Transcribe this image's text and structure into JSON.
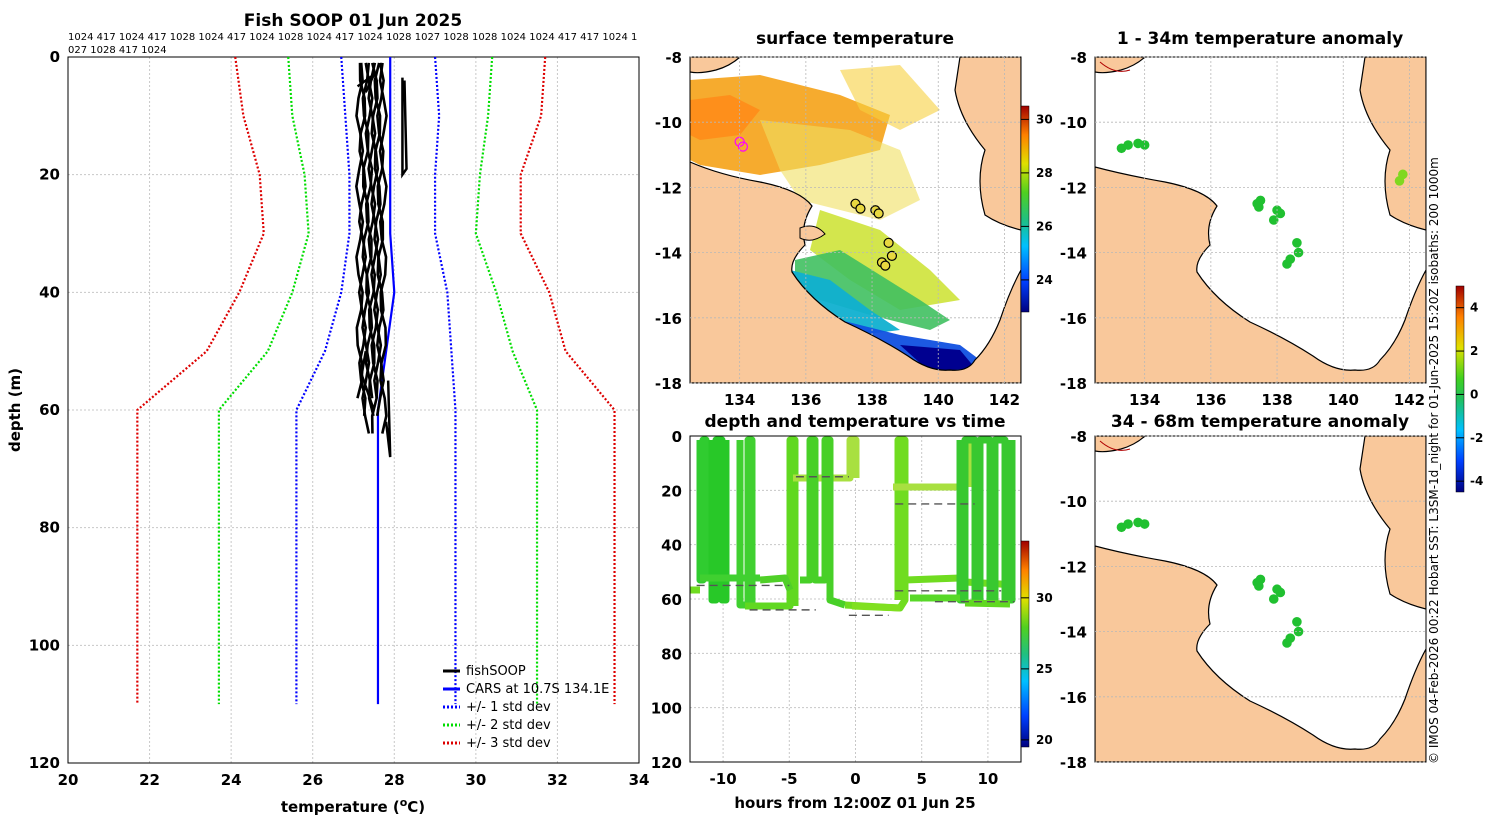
{
  "chart_data": [
    {
      "id": "profile",
      "type": "line",
      "title": "Fish SOOP 01 Jun 2025",
      "header_ids_line1": "1024 417 1024 417 1028 1024 417 1024 1028 1024 417 1024 1028 1027 1028 1028 1024 1024 417 417 1024 1",
      "header_ids_line2": "027 1028 417 1024",
      "xlabel": "temperature (",
      "xlabel_unit_sup": "o",
      "xlabel_unit": "C)",
      "ylabel": "depth (m)",
      "xlim": [
        20,
        34
      ],
      "ylim": [
        0,
        120
      ],
      "xticks": [
        "20",
        "22",
        "24",
        "26",
        "28",
        "30",
        "32",
        "34"
      ],
      "yticks": [
        "0",
        "20",
        "40",
        "60",
        "80",
        "100",
        "120"
      ],
      "grid": true,
      "legend_placement": "bottom-right",
      "legend": [
        "fishSOOP",
        "CARS at 10.7S 134.1E",
        "+/- 1 std dev",
        "+/- 2 std dev",
        "+/- 3 std dev"
      ],
      "series": [
        {
          "name": "CARS at 10.7S 134.1E",
          "color": "#0000ff",
          "style": "solid",
          "points": [
            [
              27.9,
              0
            ],
            [
              27.9,
              10
            ],
            [
              27.9,
              20
            ],
            [
              27.9,
              30
            ],
            [
              28.0,
              40
            ],
            [
              27.8,
              50
            ],
            [
              27.6,
              60
            ],
            [
              27.6,
              80
            ],
            [
              27.6,
              110
            ]
          ]
        },
        {
          "name": "+/- 1 std dev low",
          "color": "#0000ff",
          "style": "dotted",
          "points": [
            [
              26.7,
              0
            ],
            [
              26.8,
              10
            ],
            [
              26.9,
              20
            ],
            [
              26.9,
              30
            ],
            [
              26.7,
              40
            ],
            [
              26.3,
              50
            ],
            [
              25.6,
              60
            ],
            [
              25.6,
              80
            ],
            [
              25.6,
              110
            ]
          ]
        },
        {
          "name": "+/- 1 std dev high",
          "color": "#0000ff",
          "style": "dotted",
          "points": [
            [
              29.0,
              0
            ],
            [
              29.1,
              10
            ],
            [
              29.0,
              20
            ],
            [
              29.0,
              30
            ],
            [
              29.3,
              40
            ],
            [
              29.4,
              50
            ],
            [
              29.5,
              60
            ],
            [
              29.5,
              80
            ],
            [
              29.5,
              110
            ]
          ]
        },
        {
          "name": "+/- 2 std dev low",
          "color": "#00dd00",
          "style": "dotted",
          "points": [
            [
              25.4,
              0
            ],
            [
              25.5,
              10
            ],
            [
              25.8,
              20
            ],
            [
              25.9,
              30
            ],
            [
              25.5,
              40
            ],
            [
              24.9,
              50
            ],
            [
              23.7,
              60
            ],
            [
              23.7,
              80
            ],
            [
              23.7,
              110
            ]
          ]
        },
        {
          "name": "+/- 2 std dev high",
          "color": "#00dd00",
          "style": "dotted",
          "points": [
            [
              30.4,
              0
            ],
            [
              30.3,
              10
            ],
            [
              30.1,
              20
            ],
            [
              30.0,
              30
            ],
            [
              30.5,
              40
            ],
            [
              30.9,
              50
            ],
            [
              31.5,
              60
            ],
            [
              31.5,
              80
            ],
            [
              31.5,
              110
            ]
          ]
        },
        {
          "name": "+/- 3 std dev low",
          "color": "#dd0000",
          "style": "dotted",
          "points": [
            [
              24.1,
              0
            ],
            [
              24.3,
              10
            ],
            [
              24.7,
              20
            ],
            [
              24.8,
              30
            ],
            [
              24.2,
              40
            ],
            [
              23.4,
              50
            ],
            [
              21.7,
              60
            ],
            [
              21.7,
              80
            ],
            [
              21.7,
              110
            ]
          ]
        },
        {
          "name": "+/- 3 std dev high",
          "color": "#dd0000",
          "style": "dotted",
          "points": [
            [
              31.7,
              0
            ],
            [
              31.6,
              10
            ],
            [
              31.1,
              20
            ],
            [
              31.1,
              30
            ],
            [
              31.8,
              40
            ],
            [
              32.2,
              50
            ],
            [
              33.4,
              60
            ],
            [
              33.4,
              80
            ],
            [
              33.4,
              110
            ]
          ]
        },
        {
          "name": "fishSOOP",
          "color": "#000000",
          "style": "solid",
          "points": [
            [
              27.4,
              2
            ],
            [
              27.2,
              5
            ],
            [
              27.6,
              15
            ],
            [
              27.3,
              30
            ],
            [
              27.5,
              45
            ],
            [
              27.3,
              54
            ],
            [
              27.5,
              60
            ],
            [
              27.7,
              66
            ]
          ]
        }
      ]
    },
    {
      "id": "sst",
      "type": "heatmap",
      "title": "surface temperature",
      "xlim": [
        132.5,
        142.5
      ],
      "ylim": [
        -18,
        -8
      ],
      "xticks": [
        "134",
        "136",
        "138",
        "140",
        "142"
      ],
      "yticks": [
        "-8",
        "-10",
        "-12",
        "-14",
        "-16",
        "-18"
      ],
      "colorbar": {
        "min": 22.8,
        "max": 30.5,
        "ticks": [
          "24",
          "26",
          "28",
          "30"
        ]
      },
      "points": [
        [
          134.0,
          -10.6
        ],
        [
          134.1,
          -10.75
        ],
        [
          137.5,
          -12.5
        ],
        [
          137.65,
          -12.65
        ],
        [
          138.1,
          -12.7
        ],
        [
          138.2,
          -12.8
        ],
        [
          138.5,
          -13.7
        ],
        [
          138.6,
          -14.1
        ],
        [
          138.3,
          -14.3
        ],
        [
          138.4,
          -14.4
        ]
      ]
    },
    {
      "id": "anom1",
      "type": "scatter",
      "title": "1 - 34m temperature anomaly",
      "xlim": [
        132.5,
        142.5
      ],
      "ylim": [
        -18,
        -8
      ],
      "xticks": [
        "134",
        "136",
        "138",
        "140",
        "142"
      ],
      "yticks": [
        "-8",
        "-10",
        "-12",
        "-14",
        "-16",
        "-18"
      ],
      "colorbar": {
        "min": -4.5,
        "max": 5.0,
        "ticks": [
          "4",
          "2",
          "0",
          "-2",
          "-4"
        ]
      },
      "points": [
        [
          133.3,
          -10.8
        ],
        [
          133.5,
          -10.7
        ],
        [
          133.8,
          -10.65
        ],
        [
          134.0,
          -10.7
        ],
        [
          137.5,
          -12.4
        ],
        [
          137.4,
          -12.5
        ],
        [
          137.45,
          -12.6
        ],
        [
          138.0,
          -12.7
        ],
        [
          138.1,
          -12.8
        ],
        [
          137.9,
          -13.0
        ],
        [
          138.6,
          -13.7
        ],
        [
          138.65,
          -14.0
        ],
        [
          138.4,
          -14.2
        ],
        [
          138.3,
          -14.35
        ],
        [
          141.8,
          -11.6
        ],
        [
          141.7,
          -11.8
        ]
      ]
    },
    {
      "id": "anom2",
      "type": "scatter",
      "title": "34 - 68m temperature anomaly",
      "xlim": [
        132.5,
        142.5
      ],
      "ylim": [
        -18,
        -8
      ],
      "yticks": [
        "-8",
        "-10",
        "-12",
        "-14",
        "-16",
        "-18"
      ],
      "points": [
        [
          133.3,
          -10.8
        ],
        [
          133.5,
          -10.7
        ],
        [
          133.8,
          -10.65
        ],
        [
          134.0,
          -10.7
        ],
        [
          137.5,
          -12.4
        ],
        [
          137.4,
          -12.5
        ],
        [
          137.45,
          -12.6
        ],
        [
          138.0,
          -12.7
        ],
        [
          138.1,
          -12.8
        ],
        [
          137.9,
          -13.0
        ],
        [
          138.6,
          -13.7
        ],
        [
          138.65,
          -14.0
        ],
        [
          138.4,
          -14.2
        ],
        [
          138.3,
          -14.35
        ]
      ]
    },
    {
      "id": "time",
      "type": "scatter",
      "title": "depth and temperature vs time",
      "xlabel": "hours from 12:00Z 01 Jun 25",
      "xlim": [
        -12.5,
        12.5
      ],
      "ylim": [
        0,
        120
      ],
      "xticks": [
        "-10",
        "-5",
        "0",
        "5",
        "10"
      ],
      "yticks": [
        "0",
        "20",
        "40",
        "60",
        "80",
        "100",
        "120"
      ],
      "colorbar": {
        "min": 19.5,
        "max": 34.0,
        "ticks": [
          "30",
          "25",
          "20"
        ]
      },
      "dashed_bottoms": [
        [
          -12,
          55,
          -5,
          55
        ],
        [
          -8,
          64,
          -3,
          64
        ],
        [
          -4.5,
          15,
          -0.5,
          15
        ],
        [
          -0.5,
          66,
          2.5,
          66
        ],
        [
          3,
          25,
          9,
          25
        ],
        [
          3,
          57,
          11,
          57
        ],
        [
          6,
          61,
          12,
          61
        ]
      ]
    }
  ],
  "side_text": "© IMOS 04-Feb-2026 00:22 Hobart SST: L3SM-1d_night for 01-Jun-2025 15:20Z isobaths: 200  1000m"
}
